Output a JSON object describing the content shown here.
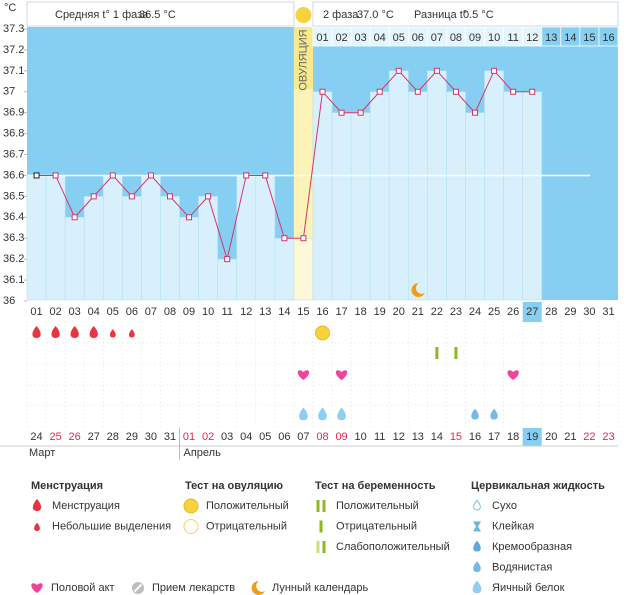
{
  "chart_data": {
    "type": "line",
    "y_unit": "°C",
    "summary": {
      "phase1_label": "Средняя t° 1 фаза",
      "phase1_value": "36.5 °C",
      "phase2_label": "2 фаза",
      "phase2_value": "37.0 °C",
      "diff_label": "Разница t°",
      "diff_value": "0.5 °C"
    },
    "ovulation_label": "ОВУЛЯЦИЯ",
    "ovulation_day": "15",
    "today": "27",
    "categories": [
      "01",
      "02",
      "03",
      "04",
      "05",
      "06",
      "07",
      "08",
      "09",
      "10",
      "11",
      "12",
      "13",
      "14",
      "15",
      "16",
      "17",
      "18",
      "19",
      "20",
      "21",
      "22",
      "23",
      "24",
      "25",
      "26",
      "27",
      "28",
      "29",
      "30",
      "31"
    ],
    "phase2_days": [
      "01",
      "02",
      "03",
      "04",
      "05",
      "06",
      "07",
      "08",
      "09",
      "10",
      "11",
      "12",
      "13",
      "14",
      "15",
      "16"
    ],
    "dates": [
      "24",
      "25",
      "26",
      "27",
      "28",
      "29",
      "30",
      "31",
      "01",
      "02",
      "03",
      "04",
      "05",
      "06",
      "07",
      "08",
      "09",
      "10",
      "11",
      "12",
      "13",
      "14",
      "15",
      "16",
      "17",
      "18",
      "19",
      "20",
      "21",
      "22",
      "23"
    ],
    "date_colors": [
      "#333",
      "#e0284a",
      "#e0284a",
      "#333",
      "#333",
      "#333",
      "#333",
      "#333",
      "#e0284a",
      "#e0284a",
      "#333",
      "#333",
      "#333",
      "#333",
      "#333",
      "#e0284a",
      "#e0284a",
      "#333",
      "#333",
      "#333",
      "#333",
      "#333",
      "#e0284a",
      "#333",
      "#333",
      "#333",
      "#333",
      "#333",
      "#333",
      "#e0284a",
      "#e0284a"
    ],
    "months": [
      "Март",
      "Апрель"
    ],
    "values": [
      36.6,
      36.6,
      36.4,
      36.5,
      36.6,
      36.5,
      36.6,
      36.5,
      36.4,
      36.5,
      36.2,
      36.6,
      36.6,
      36.3,
      36.3,
      37.0,
      36.9,
      36.9,
      37.0,
      37.1,
      37.0,
      37.1,
      37.0,
      36.9,
      37.1,
      37.0,
      37.0,
      null,
      null,
      null,
      null
    ],
    "color": "#d8336b",
    "coverline": 36.6,
    "ylim": [
      36,
      37.3
    ],
    "yticks": [
      37.3,
      37.2,
      37.1,
      37,
      36.9,
      36.8,
      36.7,
      36.6,
      36.5,
      36.4,
      36.3,
      36.2,
      36.1,
      36
    ],
    "legend": {
      "groups": [
        {
          "title": "Менструация",
          "items": [
            {
              "label": "Менструация",
              "days": [
                "01",
                "02",
                "03",
                "04"
              ]
            },
            {
              "label": "Небольшие выделения",
              "days": [
                "05",
                "06"
              ]
            }
          ]
        },
        {
          "title": "Тест на овуляцию",
          "items": [
            {
              "label": "Положительный",
              "days": [
                "16"
              ]
            },
            {
              "label": "Отрицательный",
              "days": []
            }
          ]
        },
        {
          "title": "Тест на беременность",
          "items": [
            {
              "label": "Положительный",
              "days": []
            },
            {
              "label": "Отрицательный",
              "days": [
                "22",
                "23"
              ]
            },
            {
              "label": "Слабоположительный",
              "days": []
            }
          ]
        },
        {
          "title": "Цервикальная жидкость",
          "items": [
            {
              "label": "Сухо",
              "days": []
            },
            {
              "label": "Клейкая",
              "days": []
            },
            {
              "label": "Кремообразная",
              "days": []
            },
            {
              "label": "Водянистая",
              "days": [
                "24",
                "25"
              ]
            },
            {
              "label": "Яичный белок",
              "days": [
                "15",
                "16",
                "17"
              ]
            }
          ]
        }
      ],
      "extra": [
        {
          "label": "Половой акт",
          "days": [
            "15",
            "17",
            "26"
          ]
        },
        {
          "label": "Прием лекарств",
          "days": []
        },
        {
          "label": "Лунный календарь",
          "days": [
            "21"
          ]
        }
      ]
    }
  }
}
